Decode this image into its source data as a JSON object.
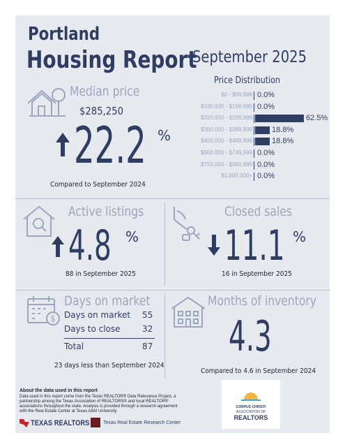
{
  "header": {
    "city": "Portland",
    "report_title": "Housing Report",
    "month": "September 2025"
  },
  "median_price": {
    "label": "Median price",
    "value": "$285,250",
    "change": "22.2",
    "pct_sign": "%",
    "direction": "up",
    "compare": "Compared to September 2024"
  },
  "price_distribution": {
    "title": "Price Distribution",
    "rows": [
      {
        "range": "$0 - $99,999",
        "value": "0.0%",
        "pct": 0.0
      },
      {
        "range": "$100,000 - $199,999",
        "value": "0.0%",
        "pct": 0.0
      },
      {
        "range": "$200,000 - $299,999",
        "value": "62.5%",
        "pct": 62.5
      },
      {
        "range": "$300,000 - $399,999",
        "value": "18.8%",
        "pct": 18.8
      },
      {
        "range": "$400,000 - $499,999",
        "value": "18.8%",
        "pct": 18.8
      },
      {
        "range": "$500,000 - $749,999",
        "value": "0.0%",
        "pct": 0.0
      },
      {
        "range": "$750,000 - $999,999",
        "value": "0.0%",
        "pct": 0.0
      },
      {
        "range": "$1,000,000+",
        "value": "0.0%",
        "pct": 0.0
      }
    ]
  },
  "active_listings": {
    "label": "Active listings",
    "change": "4.8",
    "pct_sign": "%",
    "direction": "up",
    "note": "88 in September 2025"
  },
  "closed_sales": {
    "label": "Closed sales",
    "change": "11.1",
    "pct_sign": "%",
    "direction": "down",
    "note": "16 in September 2025"
  },
  "days_on_market": {
    "label": "Days on market",
    "rows": [
      {
        "label": "Days on market",
        "value": "55"
      },
      {
        "label": "Days to close",
        "value": "32"
      }
    ],
    "total_label": "Total",
    "total_value": "87",
    "note": "23 days less than September 2024"
  },
  "months_inventory": {
    "label": "Months of inventory",
    "value": "4.3",
    "note": "Compared to 4.6 in September 2024"
  },
  "footer": {
    "about_title": "About the data used in this report",
    "about_lines": [
      "Data used in this report come from the Texas REALTOR® Data Relevance Project, a",
      "partnership among the Texas Association of REALTORS® and local REALTOR®",
      "associations throughout the state. Analysis is provided through a research agreement",
      "with the Real Estate Center at Texas A&M University."
    ],
    "texas_realtors": "TEXAS REALTORS",
    "trerc": "Texas Real Estate Research Center",
    "cc_line1": "CORPUS CHRISTI",
    "cc_line2": "ASSOCIATION OF",
    "cc_line3": "REALTORS",
    "colors": {
      "navy": "#2f3d63",
      "muted": "#9aa7bf",
      "red": "#c0282d"
    }
  }
}
